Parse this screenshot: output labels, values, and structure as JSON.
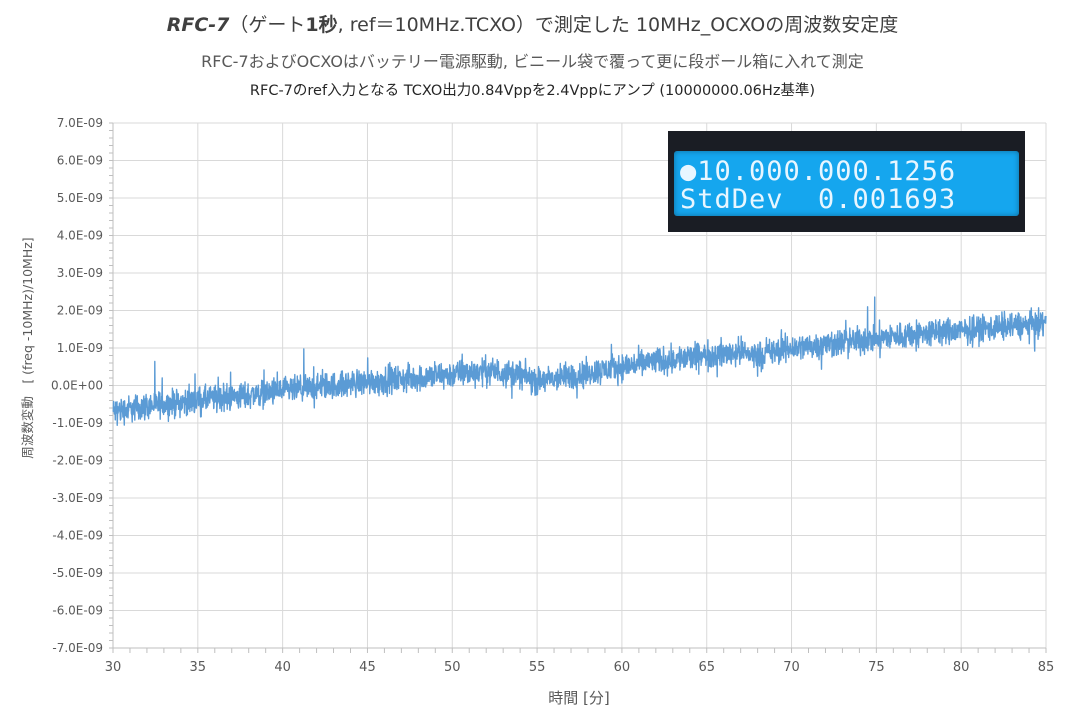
{
  "header": {
    "title_part1": "RFC-7",
    "title_part2": "（ゲート",
    "title_part3": "1秒",
    "title_part4": ", ref＝10MHz.TCXO）で測定した 10MHz_OCXOの周波数安定度",
    "subtitle1": "RFC-7およびOCXOはバッテリー電源駆動, ビニール袋で覆って更に段ボール箱に入れて測定",
    "subtitle2": "RFC-7のref入力となる TCXO出力0.84Vppを2.4Vppにアンプ (10000000.06Hz基準)"
  },
  "lcd": {
    "line1": "●10.000.000.1256",
    "line2": "StdDev  0.001693"
  },
  "chart_data": {
    "type": "line",
    "xlabel": "時間 [分]",
    "ylabel": "周波数変動　[ (freq -10MHz)/10MHz]",
    "xlim": [
      30,
      85
    ],
    "ylim": [
      -7e-09,
      7e-09
    ],
    "x_ticks": [
      "30",
      "35",
      "40",
      "45",
      "50",
      "55",
      "60",
      "65",
      "70",
      "75",
      "80",
      "85"
    ],
    "y_ticks": [
      "7.0E-09",
      "6.0E-09",
      "5.0E-09",
      "4.0E-09",
      "3.0E-09",
      "2.0E-09",
      "1.0E-09",
      "0.0E+00",
      "-1.0E-09",
      "-2.0E-09",
      "-3.0E-09",
      "-4.0E-09",
      "-5.0E-09",
      "-6.0E-09",
      "-7.0E-09"
    ],
    "grid": true,
    "series": [
      {
        "color": "#5b9bd5",
        "noise_amplitude": 2.2e-10,
        "x": [
          30,
          32,
          35,
          38,
          40,
          42,
          45,
          48,
          50,
          52,
          54,
          55,
          57,
          60,
          62,
          65,
          67,
          68,
          70,
          72,
          75,
          78,
          80,
          82,
          85
        ],
        "y": [
          -7e-10,
          -5.5e-10,
          -4e-10,
          -2.5e-10,
          -1.5e-10,
          -5e-11,
          1e-10,
          2e-10,
          3e-10,
          4e-10,
          3e-10,
          1e-10,
          2.5e-10,
          5e-10,
          6.5e-10,
          8e-10,
          9e-10,
          8e-10,
          1e-09,
          1.1e-09,
          1.25e-09,
          1.4e-09,
          1.45e-09,
          1.55e-09,
          1.65e-09
        ]
      }
    ]
  }
}
